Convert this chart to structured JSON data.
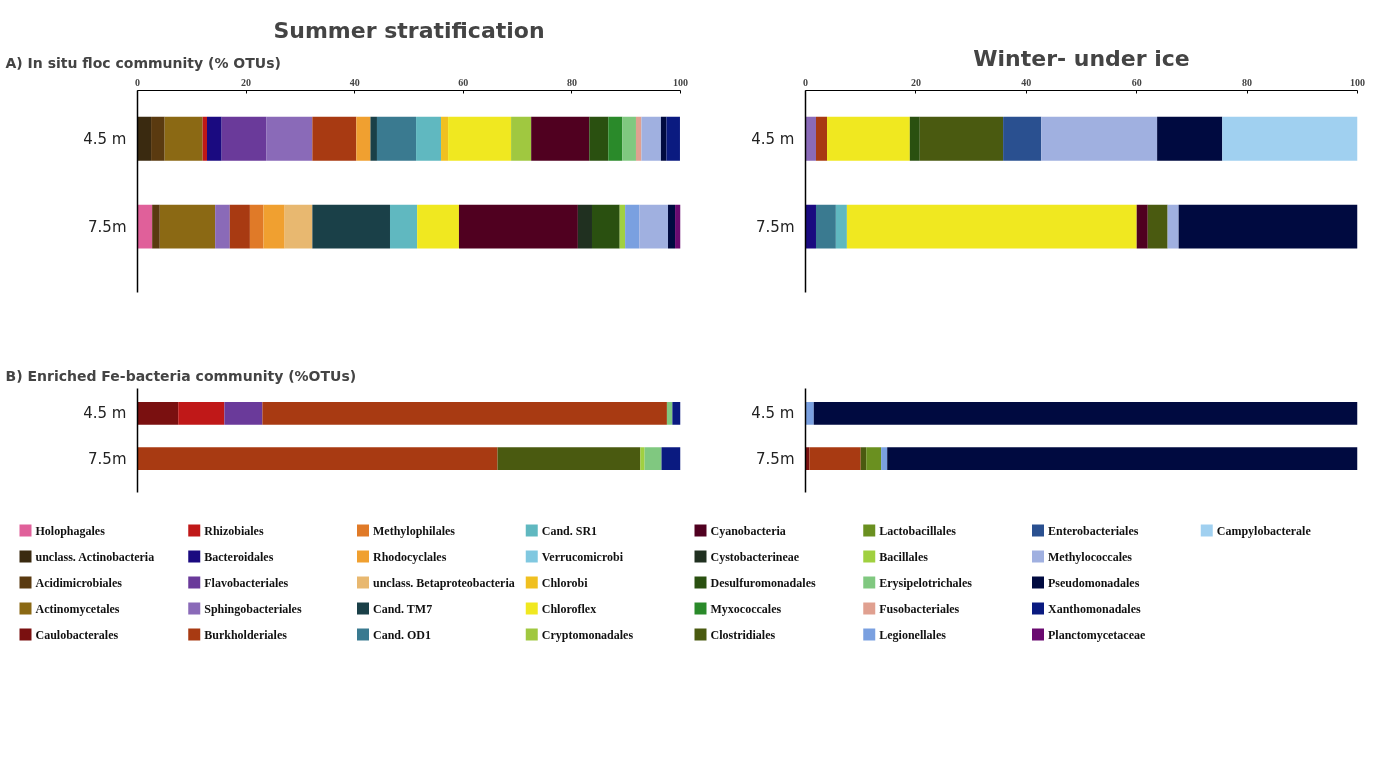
{
  "chart_data": [
    {
      "type": "bar",
      "orientation": "horizontal",
      "stacked": true,
      "title": "Summer stratification",
      "subtitle": "A) In situ floc community (% OTUs)",
      "categories": [
        "4.5 m",
        "7.5m"
      ],
      "xlim": [
        0,
        100
      ],
      "xticks": [
        0,
        20,
        40,
        60,
        80,
        100
      ],
      "legend": "bottom",
      "series": [
        {
          "name": "Holophagales",
          "color": "#e0609a",
          "values": [
            null,
            2.7
          ]
        },
        {
          "name": "unclass. Actinobacteria",
          "color": "#3a2a10",
          "values": [
            2.5,
            null
          ]
        },
        {
          "name": "Acidimicrobiales",
          "color": "#5a3a10",
          "values": [
            2.5,
            1.4
          ]
        },
        {
          "name": "Actinomycetales",
          "color": "#8b6914",
          "values": [
            7,
            10.2
          ]
        },
        {
          "name": "Caulobacterales",
          "color": "#7a1010",
          "values": [
            null,
            null
          ]
        },
        {
          "name": "Rhizobiales",
          "color": "#c01818",
          "values": [
            0.8,
            null
          ]
        },
        {
          "name": "Bacteroidales",
          "color": "#1a0a80",
          "values": [
            2.7,
            null
          ]
        },
        {
          "name": "Flavobacteriales",
          "color": "#6a3a9a",
          "values": [
            8.2,
            null
          ]
        },
        {
          "name": "Sphingobacteriales",
          "color": "#8a6ab8",
          "values": [
            8.5,
            2.7
          ]
        },
        {
          "name": "Burkholderiales",
          "color": "#a83a12",
          "values": [
            8.1,
            3.7
          ]
        },
        {
          "name": "Methylophilales",
          "color": "#e07a28",
          "values": [
            null,
            2.5
          ]
        },
        {
          "name": "Rhodocyclales",
          "color": "#f0a030",
          "values": [
            2.6,
            3.9
          ]
        },
        {
          "name": "unclass. Betaproteobacteria",
          "color": "#e8b870",
          "values": [
            null,
            5.1
          ]
        },
        {
          "name": "Cand. TM7",
          "color": "#1a4048",
          "values": [
            1.2,
            14.3
          ]
        },
        {
          "name": "Cand. OD1",
          "color": "#3a7a90",
          "values": [
            7.2,
            null
          ]
        },
        {
          "name": "Cand. SR1",
          "color": "#60b8c0",
          "values": [
            4.6,
            5.0
          ]
        },
        {
          "name": "Verrucomicrobi",
          "color": "#80c8e0",
          "values": [
            null,
            null
          ]
        },
        {
          "name": "Chlorobi",
          "color": "#f0c020",
          "values": [
            1.3,
            null
          ]
        },
        {
          "name": "Chloroflex",
          "color": "#f0e820",
          "values": [
            11.6,
            7.7
          ]
        },
        {
          "name": "Cryptomonadales",
          "color": "#a0c840",
          "values": [
            3.7,
            null
          ]
        },
        {
          "name": "Cyanobacteria",
          "color": "#500020",
          "values": [
            10.7,
            21.9
          ]
        },
        {
          "name": "Cystobacterineae",
          "color": "#203020",
          "values": [
            null,
            2.6
          ]
        },
        {
          "name": "Desulfuromonadales",
          "color": "#2a5010",
          "values": [
            3.5,
            5.1
          ]
        },
        {
          "name": "Myxococcales",
          "color": "#2a8a2a",
          "values": [
            2.6,
            null
          ]
        },
        {
          "name": "Clostridiales",
          "color": "#4a5a10",
          "values": [
            null,
            null
          ]
        },
        {
          "name": "Lactobacillales",
          "color": "#6a9020",
          "values": [
            null,
            null
          ]
        },
        {
          "name": "Bacillales",
          "color": "#a0d040",
          "values": [
            null,
            1.0
          ]
        },
        {
          "name": "Erysipelotrichales",
          "color": "#80c880",
          "values": [
            2.5,
            null
          ]
        },
        {
          "name": "Fusobacteriales",
          "color": "#e0a090",
          "values": [
            1.0,
            null
          ]
        },
        {
          "name": "Legionellales",
          "color": "#7aa0e0",
          "values": [
            null,
            2.6
          ]
        },
        {
          "name": "Enterobacteriales",
          "color": "#2a5090",
          "values": [
            null,
            null
          ]
        },
        {
          "name": "Methylococcales",
          "color": "#a0b0e0",
          "values": [
            3.6,
            5.3
          ]
        },
        {
          "name": "Pseudomonadales",
          "color": "#000a40",
          "values": [
            1.0,
            1.3
          ]
        },
        {
          "name": "Xanthomonadales",
          "color": "#0a1a80",
          "values": [
            2.5,
            null
          ]
        },
        {
          "name": "Planctomycetaceae",
          "color": "#6a0a70",
          "values": [
            null,
            1.0
          ]
        },
        {
          "name": "Campylobacterale",
          "color": "#a0d0f0",
          "values": [
            null,
            null
          ]
        }
      ]
    },
    {
      "type": "bar",
      "orientation": "horizontal",
      "stacked": true,
      "title": "Winter- under ice",
      "categories": [
        "4.5 m",
        "7.5m"
      ],
      "xlim": [
        0,
        100
      ],
      "xticks": [
        0,
        20,
        40,
        60,
        80,
        100
      ],
      "series": [
        {
          "color": "#1a0a80",
          "values": [
            null,
            1.9
          ]
        },
        {
          "color": "#8a6ab8",
          "values": [
            1.9,
            null
          ]
        },
        {
          "color": "#a83a12",
          "values": [
            2.0,
            null
          ]
        },
        {
          "color": "#3a7a90",
          "values": [
            null,
            3.6
          ]
        },
        {
          "color": "#60b8c0",
          "values": [
            null,
            2.0
          ]
        },
        {
          "color": "#f0e820",
          "values": [
            15.0,
            52.5
          ]
        },
        {
          "color": "#500020",
          "values": [
            null,
            2.0
          ]
        },
        {
          "color": "#2a5010",
          "values": [
            1.8,
            null
          ]
        },
        {
          "color": "#4a5a10",
          "values": [
            15.1,
            3.6
          ]
        },
        {
          "color": "#2a5090",
          "values": [
            6.9,
            null
          ]
        },
        {
          "color": "#a0b0e0",
          "values": [
            21.0,
            2.0
          ]
        },
        {
          "color": "#000a40",
          "values": [
            11.8,
            32.4
          ]
        },
        {
          "color": "#a0d0f0",
          "values": [
            24.5,
            null
          ]
        }
      ]
    },
    {
      "type": "bar",
      "orientation": "horizontal",
      "stacked": true,
      "subtitle": "B) Enriched Fe-bacteria community (%OTUs)",
      "categories": [
        "4.5 m",
        "7.5m"
      ],
      "xlim": [
        0,
        100
      ],
      "tick_labels": "y",
      "series": [
        {
          "color": "#7a1010",
          "values": [
            7.5,
            null
          ]
        },
        {
          "color": "#c01818",
          "values": [
            8.5,
            null
          ]
        },
        {
          "color": "#6a3a9a",
          "values": [
            7,
            null
          ]
        },
        {
          "color": "#a83a12",
          "values": [
            74.5,
            66.3
          ]
        },
        {
          "color": "#4a5a10",
          "values": [
            null,
            26.3
          ]
        },
        {
          "color": "#a0d040",
          "values": [
            null,
            0.8
          ]
        },
        {
          "color": "#80c880",
          "values": [
            1.0,
            3.1
          ]
        },
        {
          "color": "#0a1a80",
          "values": [
            1.5,
            3.5
          ]
        }
      ]
    },
    {
      "type": "bar",
      "orientation": "horizontal",
      "stacked": true,
      "categories": [
        "4.5 m",
        "7.5m"
      ],
      "xlim": [
        0,
        100
      ],
      "tick_labels": "y",
      "series": [
        {
          "color": "#7a1010",
          "values": [
            null,
            0.7
          ]
        },
        {
          "color": "#a83a12",
          "values": [
            null,
            9.3
          ]
        },
        {
          "color": "#4a5a10",
          "values": [
            null,
            1.0
          ]
        },
        {
          "color": "#6a9020",
          "values": [
            null,
            2.7
          ]
        },
        {
          "color": "#7aa0e0",
          "values": [
            1.5,
            1.1
          ]
        },
        {
          "color": "#000a40",
          "values": [
            98.5,
            85.2
          ]
        }
      ]
    }
  ]
}
